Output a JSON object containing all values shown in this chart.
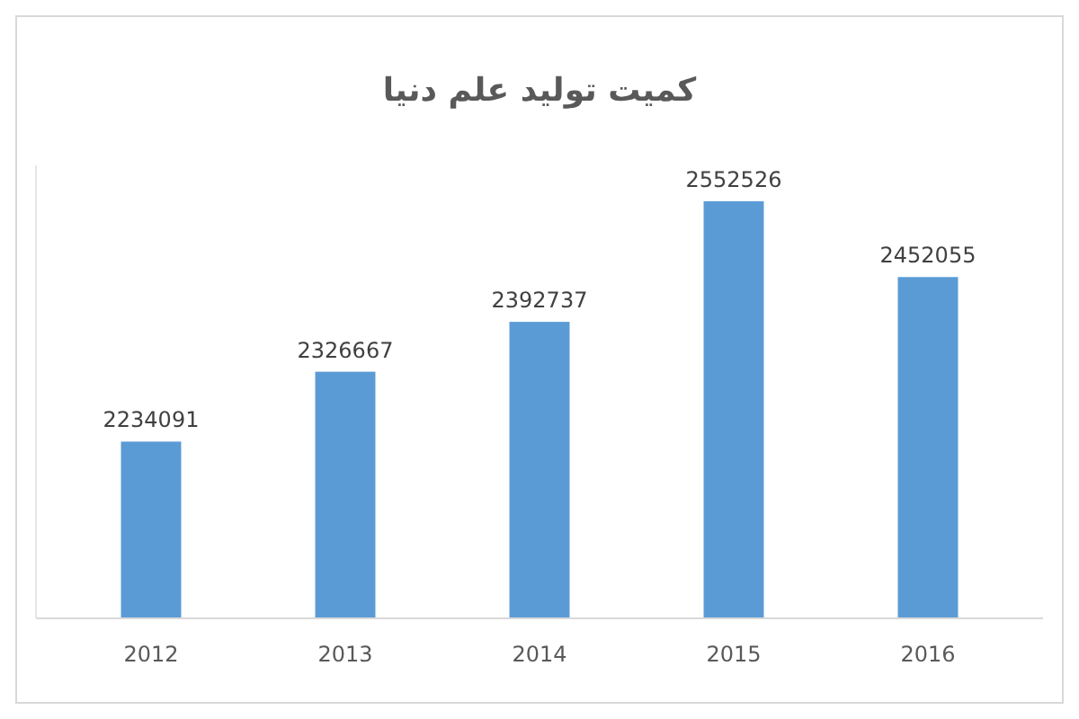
{
  "chart_data": {
    "type": "bar",
    "title": "کمیت تولید علم دنیا",
    "categories": [
      "2012",
      "2013",
      "2014",
      "2015",
      "2016"
    ],
    "values": [
      2234091,
      2326667,
      2392737,
      2552526,
      2452055
    ],
    "color": "#5b9bd5",
    "ylim": [
      2000000,
      2600000
    ],
    "tick_labels": "x",
    "data_labels": true
  }
}
